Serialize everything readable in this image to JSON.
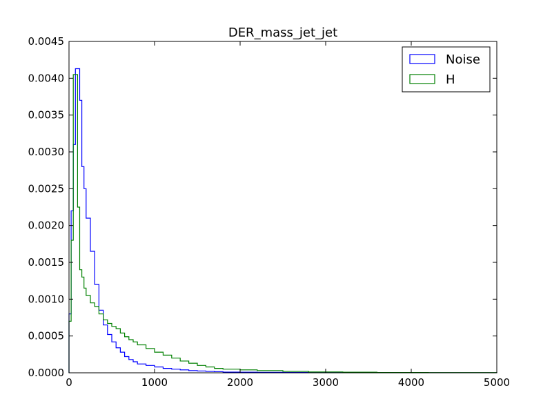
{
  "chart_data": {
    "type": "histogram-step",
    "title": "DER_mass_jet_jet",
    "xlabel": "",
    "ylabel": "",
    "xlim": [
      0,
      5000
    ],
    "ylim": [
      0,
      0.0045
    ],
    "xticks": [
      "0",
      "1000",
      "2000",
      "3000",
      "4000",
      "5000"
    ],
    "yticks": [
      "0.0000",
      "0.0005",
      "0.0010",
      "0.0015",
      "0.0020",
      "0.0025",
      "0.0030",
      "0.0035",
      "0.0040",
      "0.0045"
    ],
    "grid": false,
    "legend_position": "top-right",
    "series": [
      {
        "name": "Noise",
        "color": "#0000ff",
        "bin_edges": [
          0,
          25,
          50,
          75,
          100,
          125,
          150,
          175,
          200,
          250,
          300,
          350,
          400,
          450,
          500,
          550,
          600,
          650,
          700,
          750,
          800,
          900,
          1000,
          1100,
          1200,
          1300,
          1400,
          1500,
          1600,
          1700,
          1800,
          2000,
          2200,
          2500,
          2800,
          3200,
          3600,
          4200,
          5000
        ],
        "values": [
          0.0008,
          0.0022,
          0.0031,
          0.00413,
          0.00413,
          0.0037,
          0.0028,
          0.0025,
          0.0021,
          0.00165,
          0.0012,
          0.00085,
          0.00065,
          0.00052,
          0.00042,
          0.00034,
          0.00028,
          0.00022,
          0.00018,
          0.00015,
          0.00012,
          0.0001,
          8e-05,
          6e-05,
          5e-05,
          4e-05,
          3e-05,
          2.5e-05,
          2e-05,
          1.5e-05,
          1e-05,
          8e-06,
          6e-06,
          4e-06,
          3e-06,
          2e-06,
          1e-06,
          5e-07
        ]
      },
      {
        "name": "H",
        "color": "#008000",
        "bin_edges": [
          0,
          25,
          50,
          75,
          100,
          125,
          150,
          175,
          200,
          250,
          300,
          350,
          400,
          450,
          500,
          550,
          600,
          650,
          700,
          750,
          800,
          900,
          1000,
          1100,
          1200,
          1300,
          1400,
          1500,
          1600,
          1700,
          1800,
          2000,
          2200,
          2500,
          2800,
          3200,
          3600,
          4200,
          5000
        ],
        "values": [
          0.0007,
          0.0018,
          0.00405,
          0.00405,
          0.00225,
          0.0014,
          0.0013,
          0.00115,
          0.00105,
          0.00095,
          0.0009,
          0.0008,
          0.00072,
          0.00067,
          0.00063,
          0.0006,
          0.00054,
          0.00049,
          0.00045,
          0.00042,
          0.00038,
          0.00033,
          0.00028,
          0.00024,
          0.0002,
          0.00016,
          0.00013,
          0.0001,
          8e-05,
          6e-05,
          5e-05,
          4e-05,
          3e-05,
          2e-05,
          1.2e-05,
          8e-06,
          4e-06,
          2e-06
        ]
      }
    ]
  }
}
